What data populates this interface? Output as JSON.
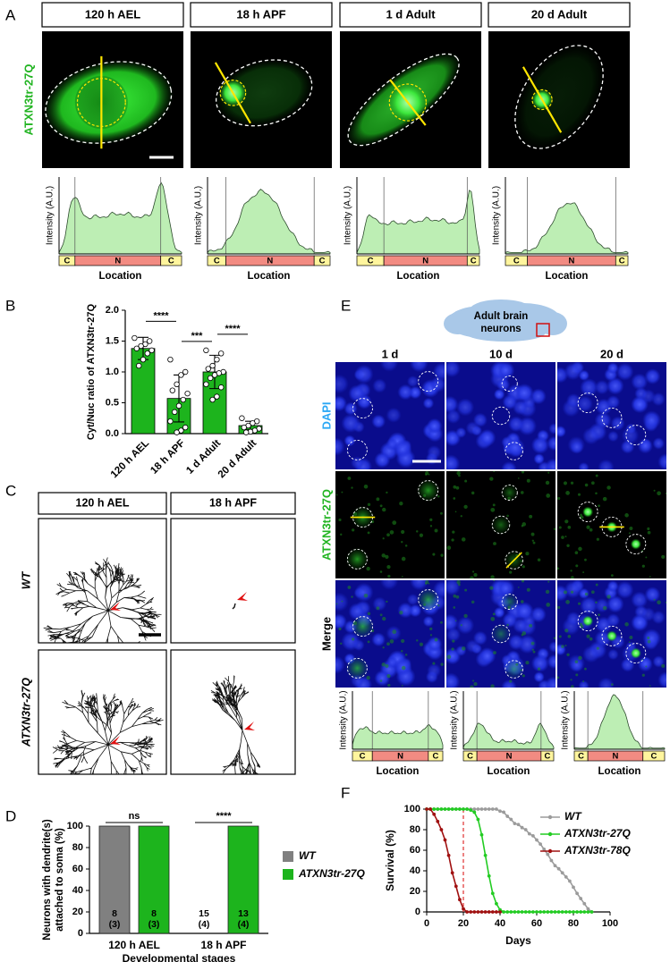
{
  "panel_letters": [
    "A",
    "B",
    "C",
    "D",
    "E",
    "F"
  ],
  "panel_a": {
    "stages": [
      "120 h AEL",
      "18 h APF",
      "1 d Adult",
      "20 d Adult"
    ],
    "channel": "ATXN3tr-27Q",
    "profile_y_label": "Intensity (A.U.)",
    "profile_x_label": "Location",
    "segments": [
      "C",
      "N",
      "C"
    ]
  },
  "panel_c": {
    "stages": [
      "120 h AEL",
      "18 h APF"
    ],
    "genotypes": [
      "WT",
      "ATXN3tr-27Q"
    ]
  },
  "panel_e": {
    "region": [
      "Adult brain",
      "neurons"
    ],
    "ages": [
      "1 d",
      "10 d",
      "20 d"
    ],
    "channels": [
      "DAPI",
      "ATXN3tr-27Q",
      "Merge"
    ],
    "profile_y_label": "Intensity (A.U.)",
    "profile_x_label": "Location",
    "segments": [
      "C",
      "N",
      "C"
    ]
  },
  "chart_data": [
    {
      "type": "bar",
      "y_label": "Cyt/Nuc ratio of ATXN3tr-27Q",
      "categories": [
        "120 h AEL",
        "18 h APF",
        "1 d Adult",
        "20 d Adult"
      ],
      "values": [
        1.38,
        0.57,
        1.0,
        0.13
      ],
      "errors": [
        0.18,
        0.38,
        0.27,
        0.07
      ],
      "points": [
        [
          1.55,
          1.5,
          1.45,
          1.42,
          1.38,
          1.35,
          1.3,
          1.2,
          1.1
        ],
        [
          1.2,
          1.0,
          0.95,
          0.8,
          0.7,
          0.65,
          0.55,
          0.45,
          0.35,
          0.2,
          0.1,
          0.05,
          0.02
        ],
        [
          1.35,
          1.3,
          1.2,
          1.1,
          1.05,
          1.0,
          0.98,
          0.95,
          0.9,
          0.8,
          0.75,
          0.6,
          0.55
        ],
        [
          0.25,
          0.2,
          0.17,
          0.13,
          0.1,
          0.08,
          0.05,
          0.03,
          0.02
        ]
      ],
      "color": "#1db41d",
      "ylim": [
        0,
        2
      ],
      "yticks": [
        {
          "value": 0,
          "label": "0.0"
        },
        0.5,
        {
          "value": 1,
          "label": "1.0"
        },
        1.5,
        {
          "value": 2,
          "label": "2.0"
        }
      ],
      "significance": [
        "****",
        "***",
        "****"
      ]
    },
    {
      "type": "bar",
      "y_label": [
        "Neurons with dendrite(s)",
        "attached to soma (%)"
      ],
      "x_label": "Developmental stages",
      "categories": [
        "120 h AEL",
        "18 h APF"
      ],
      "series": [
        {
          "name": "WT",
          "color": "#808080",
          "values": [
            100,
            0
          ],
          "sample_labels": [
            [
              "8",
              "(3)"
            ],
            [
              "15",
              "(4)"
            ]
          ]
        },
        {
          "name": "ATXN3tr-27Q",
          "color": "#1db41d",
          "values": [
            100,
            100
          ],
          "sample_labels": [
            [
              "8",
              "(3)"
            ],
            [
              "13",
              "(4)"
            ]
          ]
        }
      ],
      "ylim": [
        0,
        100
      ],
      "yticks": [
        0,
        20,
        40,
        60,
        80,
        100
      ],
      "significance": [
        "ns",
        "****"
      ],
      "legend": "right"
    },
    {
      "type": "line",
      "x_label": "Days",
      "y_label": "Survival (%)",
      "series": [
        {
          "name": "WT",
          "color": "#9b9b9b",
          "x": [
            0,
            2,
            4,
            6,
            8,
            10,
            12,
            14,
            16,
            18,
            20,
            22,
            24,
            26,
            28,
            30,
            32,
            34,
            36,
            38,
            40,
            42,
            44,
            46,
            48,
            50,
            52,
            54,
            56,
            58,
            60,
            62,
            64,
            66,
            68,
            70,
            72,
            74,
            76,
            78,
            80,
            82,
            84,
            86,
            88,
            90
          ],
          "values": [
            100,
            100,
            100,
            100,
            100,
            100,
            100,
            100,
            100,
            100,
            100,
            100,
            100,
            100,
            100,
            100,
            100,
            100,
            100,
            100,
            98,
            97,
            93,
            90,
            86,
            85,
            82,
            80,
            76,
            74,
            70,
            66,
            61,
            56,
            50,
            45,
            42,
            38,
            34,
            30,
            24,
            18,
            13,
            8,
            3,
            0
          ]
        },
        {
          "name": "ATXN3tr-27Q",
          "color": "#22cc22",
          "x": [
            0,
            2,
            4,
            6,
            8,
            10,
            12,
            14,
            16,
            18,
            20,
            22,
            24,
            26,
            28,
            30,
            32,
            34,
            36,
            38,
            40,
            42,
            44,
            46,
            48,
            50,
            52,
            54,
            56,
            58,
            60,
            62,
            64,
            66,
            68,
            70,
            72,
            74,
            76,
            78,
            80,
            82,
            84,
            86,
            88,
            90
          ],
          "values": [
            100,
            100,
            100,
            100,
            100,
            100,
            100,
            100,
            100,
            100,
            100,
            100,
            99,
            97,
            90,
            75,
            55,
            35,
            18,
            8,
            2,
            0,
            0,
            0,
            0,
            0,
            0,
            0,
            0,
            0,
            0,
            0,
            0,
            0,
            0,
            0,
            0,
            0,
            0,
            0,
            0,
            0,
            0,
            0,
            0,
            0
          ]
        },
        {
          "name": "ATXN3tr-78Q",
          "color": "#a01010",
          "x": [
            0,
            2,
            4,
            6,
            8,
            10,
            12,
            14,
            16,
            18,
            20,
            22,
            24,
            26,
            28,
            30,
            32,
            34,
            36,
            38,
            40
          ],
          "values": [
            100,
            100,
            95,
            88,
            80,
            70,
            55,
            38,
            25,
            12,
            3,
            0,
            0,
            0,
            0,
            0,
            0,
            0,
            0,
            0,
            0
          ]
        }
      ],
      "xlim": [
        0,
        100
      ],
      "xticks": [
        0,
        20,
        40,
        60,
        80,
        100
      ],
      "ylim": [
        0,
        100
      ],
      "yticks": [
        0,
        20,
        40,
        60,
        80,
        100
      ],
      "reference_x": 20,
      "reference_color": "#e03030",
      "legend": "top-right"
    }
  ]
}
